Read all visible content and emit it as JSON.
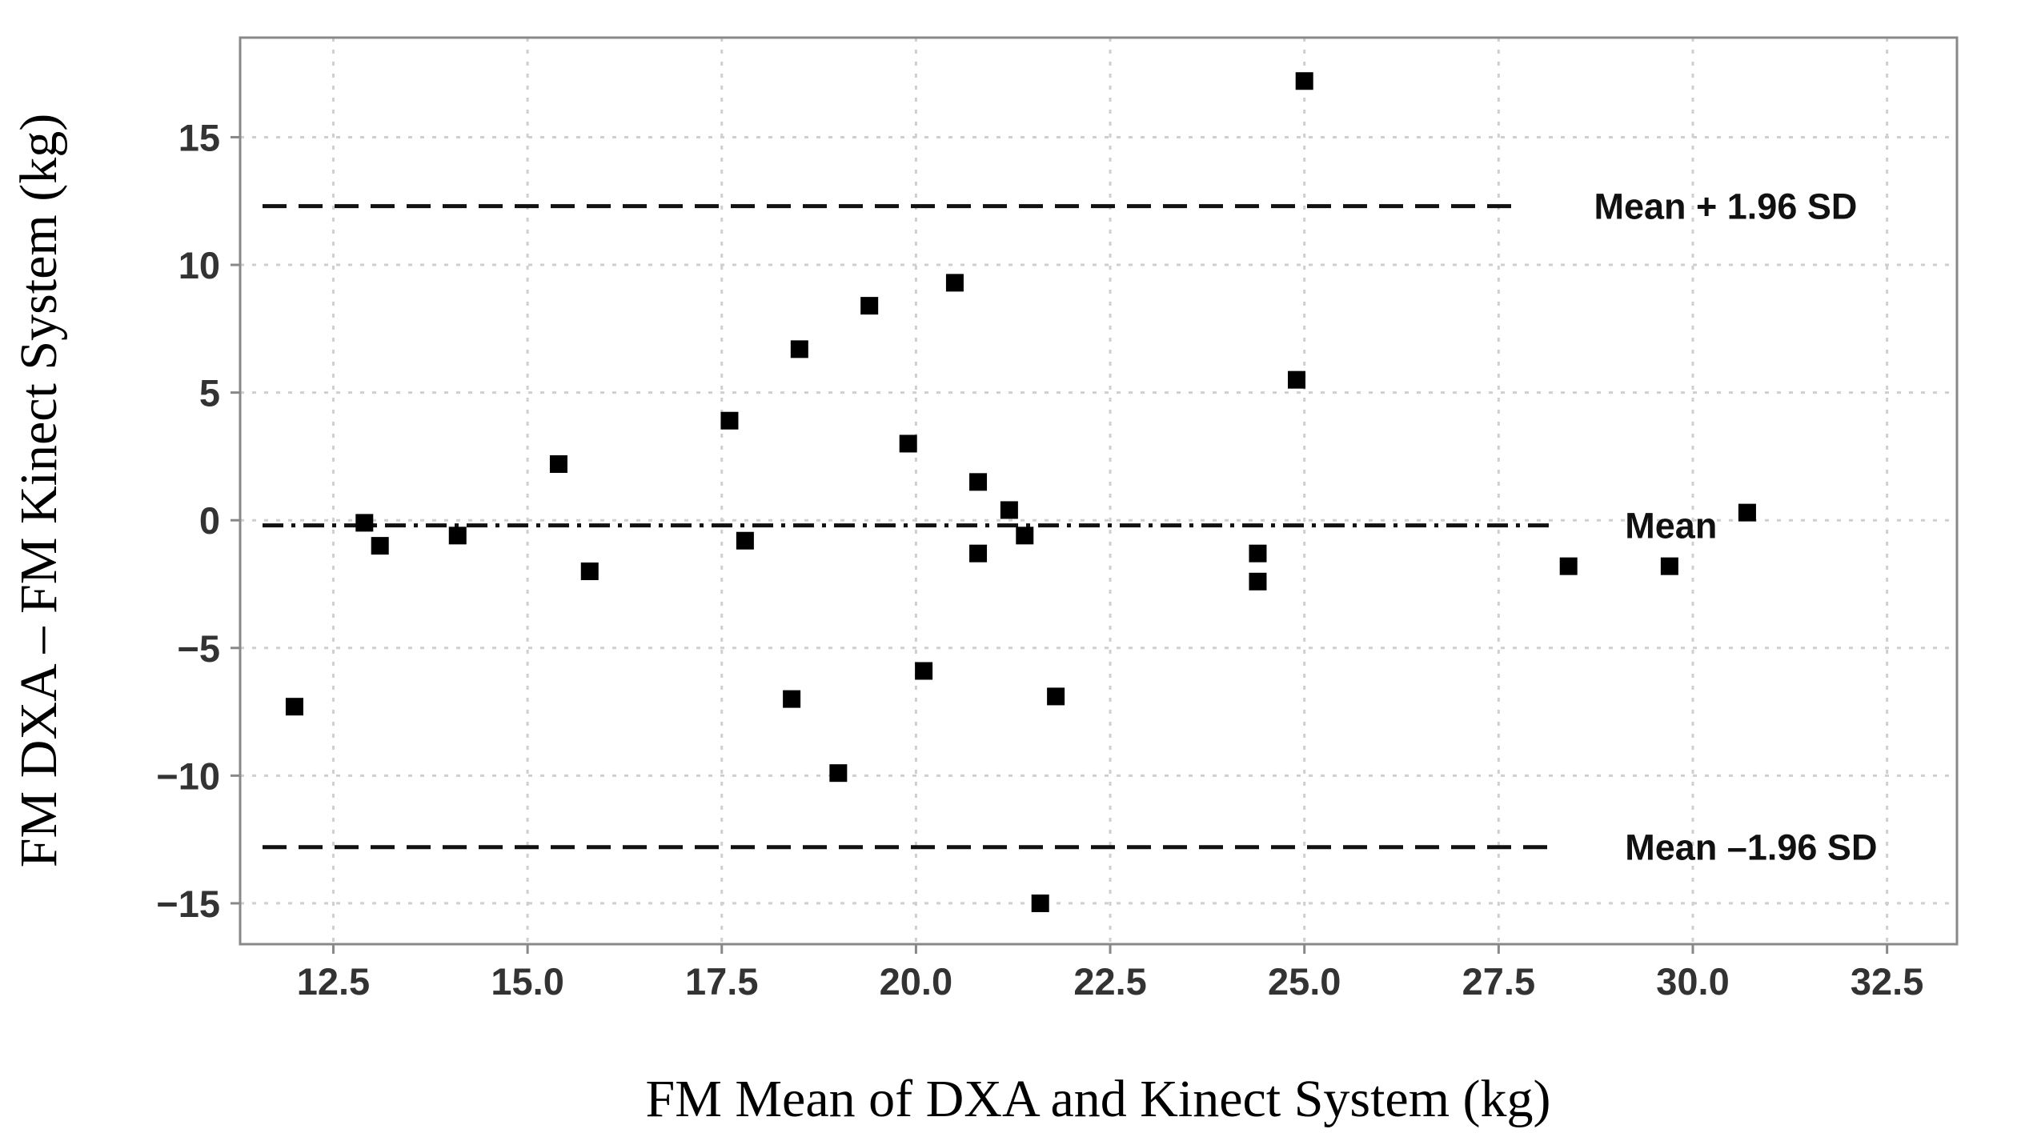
{
  "chart_data": {
    "type": "scatter",
    "title": "",
    "xlabel": "FM Mean of DXA and Kinect System (kg)",
    "ylabel": "FM DXA – FM Kinect System (kg)",
    "xlim": [
      11.3,
      33.4
    ],
    "ylim": [
      -16.6,
      18.9
    ],
    "x_ticks": [
      12.5,
      15.0,
      17.5,
      20.0,
      22.5,
      25.0,
      27.5,
      30.0,
      32.5
    ],
    "x_tick_labels": [
      "12.5",
      "15.0",
      "17.5",
      "20.0",
      "22.5",
      "25.0",
      "27.5",
      "30.0",
      "32.5"
    ],
    "y_ticks": [
      15,
      10,
      5,
      0,
      -5,
      -10,
      -15
    ],
    "y_tick_labels": [
      "15",
      "10",
      "5",
      "0",
      "−5",
      "−10",
      "−15"
    ],
    "grid": true,
    "marker": "square",
    "marker_color": "#000000",
    "points": [
      {
        "x": 12.0,
        "y": -7.3
      },
      {
        "x": 12.9,
        "y": -0.1
      },
      {
        "x": 13.1,
        "y": -1.0
      },
      {
        "x": 14.1,
        "y": -0.6
      },
      {
        "x": 15.4,
        "y": 2.2
      },
      {
        "x": 15.8,
        "y": -2.0
      },
      {
        "x": 17.6,
        "y": 3.9
      },
      {
        "x": 17.8,
        "y": -0.8
      },
      {
        "x": 18.4,
        "y": -7.0
      },
      {
        "x": 18.5,
        "y": 6.7
      },
      {
        "x": 19.0,
        "y": -9.9
      },
      {
        "x": 19.4,
        "y": 8.4
      },
      {
        "x": 19.9,
        "y": 3.0
      },
      {
        "x": 20.1,
        "y": -5.9
      },
      {
        "x": 20.5,
        "y": 9.3
      },
      {
        "x": 20.8,
        "y": 1.5
      },
      {
        "x": 20.8,
        "y": -1.3
      },
      {
        "x": 21.2,
        "y": 0.4
      },
      {
        "x": 21.4,
        "y": -0.6
      },
      {
        "x": 21.6,
        "y": -15.0
      },
      {
        "x": 21.8,
        "y": -6.9
      },
      {
        "x": 24.4,
        "y": -1.3
      },
      {
        "x": 24.4,
        "y": -2.4
      },
      {
        "x": 24.9,
        "y": 5.5
      },
      {
        "x": 25.0,
        "y": 17.2
      },
      {
        "x": 28.4,
        "y": -1.8
      },
      {
        "x": 29.7,
        "y": -1.8
      },
      {
        "x": 30.7,
        "y": 0.3
      }
    ],
    "reference_lines": [
      {
        "label": "Mean + 1.96 SD",
        "y": 12.3,
        "x_end": 27.8,
        "style": "dashed"
      },
      {
        "label": "Mean",
        "y": -0.2,
        "x_end": 28.2,
        "style": "dashdot"
      },
      {
        "label": "Mean –1.96 SD",
        "y": -12.8,
        "x_end": 28.2,
        "style": "dashed"
      }
    ]
  }
}
